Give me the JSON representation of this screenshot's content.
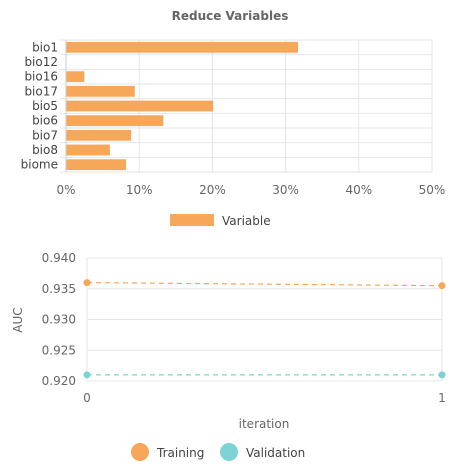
{
  "colors": {
    "bar": "#F7A75A",
    "training": "#F7A75A",
    "validation": "#7DD3D3",
    "grid": "#e6e6e6",
    "axis_text": "#666666",
    "title_text": "#666666"
  },
  "chart_data": [
    {
      "type": "bar",
      "orientation": "horizontal",
      "title": "Reduce Variables",
      "categories": [
        "bio1",
        "bio12",
        "bio16",
        "bio17",
        "bio5",
        "bio6",
        "bio7",
        "bio8",
        "biome"
      ],
      "series": [
        {
          "name": "Variable",
          "values": [
            31.7,
            0,
            2.5,
            9.4,
            20.1,
            13.3,
            8.9,
            6.0,
            8.2
          ]
        }
      ],
      "xlim": [
        0,
        50
      ],
      "xticks": [
        0,
        10,
        20,
        30,
        40,
        50
      ],
      "tick_labels": [
        "0%",
        "10%",
        "20%",
        "30%",
        "40%",
        "50%"
      ],
      "xlabel": "",
      "ylabel": "",
      "legend": {
        "position": "bottom",
        "entries": [
          "Variable"
        ]
      },
      "grid": true
    },
    {
      "type": "line",
      "title": "",
      "x": [
        0,
        1
      ],
      "series": [
        {
          "name": "Training",
          "values": [
            0.936,
            0.9355
          ]
        },
        {
          "name": "Validation",
          "values": [
            0.921,
            0.921
          ]
        }
      ],
      "xlabel": "iteration",
      "ylabel": "AUC",
      "xticks": [
        0,
        1
      ],
      "tick_labels_x": [
        "0",
        "1"
      ],
      "ylim": [
        0.92,
        0.94
      ],
      "yticks": [
        0.92,
        0.925,
        0.93,
        0.935,
        0.94
      ],
      "tick_labels_y": [
        "0.920",
        "0.925",
        "0.930",
        "0.935",
        "0.940"
      ],
      "legend": {
        "position": "bottom",
        "entries": [
          "Training",
          "Validation"
        ]
      },
      "grid": true
    }
  ]
}
